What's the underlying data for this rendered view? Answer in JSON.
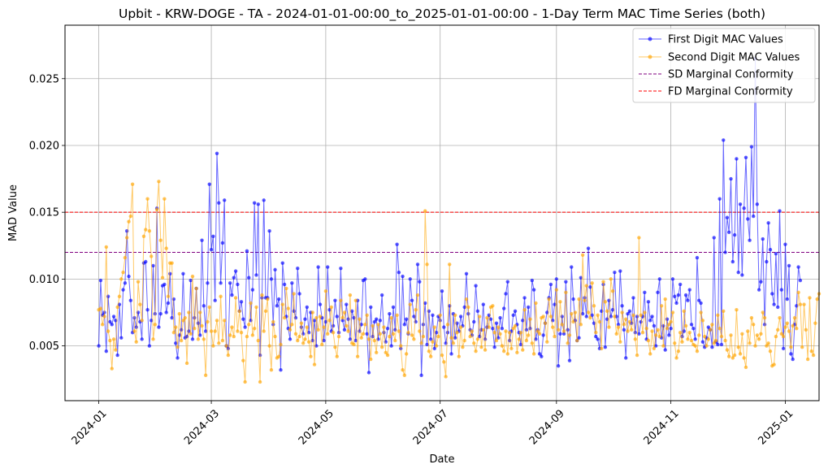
{
  "chart_data": {
    "type": "line",
    "title": "Upbit - KRW-DOGE - TA - 2024-01-01-00:00_to_2025-01-01-00:00 - 1-Day Term MAC Time Series (both)",
    "xlabel": "Date",
    "ylabel": "MAD Value",
    "x_ticks": [
      "2024-01",
      "2024-03",
      "2024-05",
      "2024-07",
      "2024-09",
      "2024-11",
      "2025-01"
    ],
    "y_ticks": [
      "0.005",
      "0.010",
      "0.015",
      "0.020",
      "0.025"
    ],
    "xlim": [
      "2023-12-14",
      "2025-01-19"
    ],
    "ylim": [
      0.0009,
      0.029
    ],
    "grid": true,
    "legend_position": "top-right",
    "start_date": "2024-01-01",
    "series": [
      {
        "name": "First Digit MAC Values",
        "color": "#0000ff",
        "values": [
          0.005,
          0.0099,
          0.0073,
          0.0075,
          0.0046,
          0.0087,
          0.0068,
          0.0066,
          0.0072,
          0.0069,
          0.0043,
          0.0081,
          0.0056,
          0.0092,
          0.0097,
          0.0136,
          0.0102,
          0.0084,
          0.006,
          0.0071,
          0.0064,
          0.0075,
          0.0068,
          0.0055,
          0.0112,
          0.0113,
          0.0077,
          0.005,
          0.0069,
          0.011,
          0.0074,
          0.0153,
          0.0064,
          0.0074,
          0.0095,
          0.0096,
          0.0075,
          0.0082,
          0.0104,
          0.0071,
          0.0085,
          0.0052,
          0.0041,
          0.0058,
          0.0062,
          0.0104,
          0.0056,
          0.0057,
          0.0061,
          0.0099,
          0.0055,
          0.0071,
          0.0093,
          0.0067,
          0.0058,
          0.0129,
          0.008,
          0.0061,
          0.0097,
          0.0171,
          0.0122,
          0.0132,
          0.0084,
          0.0194,
          0.0157,
          0.0097,
          0.0127,
          0.0159,
          0.005,
          0.0048,
          0.0097,
          0.0088,
          0.0101,
          0.0106,
          0.0096,
          0.0076,
          0.0083,
          0.007,
          0.0064,
          0.0121,
          0.0101,
          0.0069,
          0.0092,
          0.0157,
          0.0103,
          0.0156,
          0.0043,
          0.0086,
          0.0159,
          0.0086,
          0.0086,
          0.0136,
          0.01,
          0.0066,
          0.0107,
          0.008,
          0.0085,
          0.0032,
          0.0112,
          0.0096,
          0.0072,
          0.0063,
          0.0055,
          0.0097,
          0.0076,
          0.0071,
          0.0108,
          0.0089,
          0.0064,
          0.0059,
          0.007,
          0.0079,
          0.006,
          0.0075,
          0.0054,
          0.0069,
          0.005,
          0.0109,
          0.0081,
          0.0071,
          0.0054,
          0.0068,
          0.0109,
          0.0077,
          0.0061,
          0.0065,
          0.0084,
          0.0072,
          0.006,
          0.0108,
          0.0069,
          0.0062,
          0.0081,
          0.007,
          0.0055,
          0.0076,
          0.0071,
          0.0054,
          0.0084,
          0.0061,
          0.0066,
          0.0099,
          0.01,
          0.0059,
          0.003,
          0.0079,
          0.0057,
          0.0068,
          0.007,
          0.0055,
          0.0069,
          0.0088,
          0.006,
          0.0053,
          0.0063,
          0.0074,
          0.005,
          0.0079,
          0.0062,
          0.0126,
          0.0105,
          0.0048,
          0.0102,
          0.0066,
          0.007,
          0.0059,
          0.01,
          0.0084,
          0.0072,
          0.0068,
          0.0111,
          0.0098,
          0.0028,
          0.0066,
          0.0082,
          0.0051,
          0.0076,
          0.0055,
          0.0073,
          0.0048,
          0.006,
          0.0072,
          0.0069,
          0.0091,
          0.0064,
          0.0052,
          0.006,
          0.008,
          0.0044,
          0.0074,
          0.0056,
          0.0067,
          0.0061,
          0.0072,
          0.0065,
          0.0079,
          0.0104,
          0.0074,
          0.0062,
          0.0058,
          0.0068,
          0.0095,
          0.0076,
          0.0057,
          0.0062,
          0.0081,
          0.0055,
          0.0064,
          0.0073,
          0.007,
          0.0063,
          0.0049,
          0.0067,
          0.0056,
          0.0071,
          0.0063,
          0.0078,
          0.0089,
          0.0098,
          0.0054,
          0.0061,
          0.0073,
          0.0076,
          0.0066,
          0.006,
          0.0051,
          0.0069,
          0.0086,
          0.0062,
          0.0079,
          0.0063,
          0.0099,
          0.0092,
          0.0055,
          0.0062,
          0.0044,
          0.0042,
          0.0058,
          0.0067,
          0.0075,
          0.0086,
          0.0096,
          0.0069,
          0.0081,
          0.01,
          0.0035,
          0.0059,
          0.0072,
          0.0059,
          0.0098,
          0.0062,
          0.0039,
          0.0109,
          0.0085,
          0.0069,
          0.0054,
          0.0056,
          0.0101,
          0.0074,
          0.0086,
          0.0072,
          0.0123,
          0.0094,
          0.0073,
          0.0067,
          0.0057,
          0.0055,
          0.0048,
          0.0076,
          0.0096,
          0.0049,
          0.007,
          0.0084,
          0.0072,
          0.0077,
          0.0105,
          0.0072,
          0.0066,
          0.0106,
          0.008,
          0.0062,
          0.0041,
          0.0074,
          0.0076,
          0.0067,
          0.0086,
          0.006,
          0.0072,
          0.0059,
          0.0068,
          0.0072,
          0.009,
          0.0055,
          0.0083,
          0.0069,
          0.0072,
          0.0065,
          0.005,
          0.009,
          0.01,
          0.0056,
          0.0065,
          0.0047,
          0.007,
          0.0058,
          0.0063,
          0.01,
          0.0087,
          0.0082,
          0.0088,
          0.0096,
          0.0057,
          0.0061,
          0.0088,
          0.0084,
          0.0092,
          0.0066,
          0.0063,
          0.0055,
          0.0116,
          0.0084,
          0.0082,
          0.0053,
          0.0049,
          0.0056,
          0.0064,
          0.0062,
          0.0049,
          0.0131,
          0.0053,
          0.0051,
          0.016,
          0.0051,
          0.0204,
          0.012,
          0.0146,
          0.0135,
          0.0175,
          0.0113,
          0.0133,
          0.019,
          0.0105,
          0.0156,
          0.0103,
          0.0153,
          0.0191,
          0.0145,
          0.0129,
          0.0199,
          0.0147,
          0.0265,
          0.0156,
          0.0092,
          0.0098,
          0.013,
          0.0066,
          0.0113,
          0.0142,
          0.0122,
          0.0089,
          0.0081,
          0.0119,
          0.0079,
          0.0151,
          0.0092,
          0.0048,
          0.0126,
          0.0085,
          0.011,
          0.0044,
          0.004,
          0.0066,
          0.008,
          0.0109,
          0.0099
        ]
      },
      {
        "name": "Second Digit MAC Values",
        "color": "#ffa500",
        "values": [
          0.0077,
          0.0078,
          0.0066,
          0.0072,
          0.0124,
          0.0061,
          0.0054,
          0.0033,
          0.0055,
          0.0047,
          0.0079,
          0.0087,
          0.01,
          0.0105,
          0.0116,
          0.0131,
          0.0143,
          0.0147,
          0.0171,
          0.0061,
          0.0053,
          0.0098,
          0.0081,
          0.0069,
          0.0132,
          0.0137,
          0.016,
          0.0136,
          0.0117,
          0.0055,
          0.0066,
          0.0152,
          0.0173,
          0.0129,
          0.0101,
          0.016,
          0.0123,
          0.0087,
          0.0112,
          0.0112,
          0.006,
          0.0064,
          0.0049,
          0.0074,
          0.0054,
          0.0069,
          0.0071,
          0.0037,
          0.0075,
          0.0059,
          0.0102,
          0.0063,
          0.0093,
          0.0055,
          0.0075,
          0.0065,
          0.0055,
          0.0028,
          0.0068,
          0.0079,
          0.0061,
          0.005,
          0.0061,
          0.0069,
          0.0052,
          0.0087,
          0.0054,
          0.0069,
          0.005,
          0.0043,
          0.0058,
          0.0064,
          0.0057,
          0.0086,
          0.0061,
          0.0076,
          0.006,
          0.0039,
          0.0023,
          0.0057,
          0.0066,
          0.0082,
          0.0058,
          0.0063,
          0.0079,
          0.0054,
          0.0023,
          0.0088,
          0.0061,
          0.0076,
          0.0085,
          0.005,
          0.0032,
          0.0068,
          0.0057,
          0.0041,
          0.0042,
          0.0051,
          0.0081,
          0.0071,
          0.0093,
          0.0078,
          0.0062,
          0.0066,
          0.0089,
          0.0059,
          0.0054,
          0.0057,
          0.0067,
          0.0052,
          0.0055,
          0.0064,
          0.0053,
          0.0042,
          0.0075,
          0.0036,
          0.0071,
          0.0062,
          0.0072,
          0.0051,
          0.0064,
          0.0091,
          0.0059,
          0.0069,
          0.0079,
          0.006,
          0.0049,
          0.0042,
          0.0057,
          0.0084,
          0.0071,
          0.0075,
          0.0065,
          0.0061,
          0.0088,
          0.0052,
          0.0051,
          0.0084,
          0.0042,
          0.007,
          0.0056,
          0.0059,
          0.0066,
          0.0073,
          0.0055,
          0.004,
          0.0065,
          0.0054,
          0.0045,
          0.0066,
          0.0059,
          0.0049,
          0.0064,
          0.0045,
          0.0043,
          0.0057,
          0.0071,
          0.0059,
          0.0054,
          0.0073,
          0.0061,
          0.005,
          0.0032,
          0.0028,
          0.0044,
          0.006,
          0.0081,
          0.0058,
          0.0055,
          0.0077,
          0.0088,
          0.0061,
          0.0052,
          0.0057,
          0.0151,
          0.0111,
          0.0046,
          0.0042,
          0.0053,
          0.0064,
          0.005,
          0.0057,
          0.0073,
          0.0043,
          0.0038,
          0.0027,
          0.0066,
          0.0111,
          0.0056,
          0.0052,
          0.0073,
          0.006,
          0.0042,
          0.0064,
          0.0049,
          0.0054,
          0.0085,
          0.0079,
          0.0057,
          0.0061,
          0.0052,
          0.0046,
          0.0055,
          0.0072,
          0.0049,
          0.0062,
          0.0047,
          0.0071,
          0.0064,
          0.0079,
          0.008,
          0.006,
          0.0054,
          0.0064,
          0.0059,
          0.005,
          0.0046,
          0.0061,
          0.0044,
          0.006,
          0.0048,
          0.0063,
          0.0065,
          0.0045,
          0.0055,
          0.006,
          0.0047,
          0.0077,
          0.0054,
          0.0058,
          0.007,
          0.0052,
          0.0044,
          0.0082,
          0.0061,
          0.0059,
          0.0071,
          0.0072,
          0.0067,
          0.0053,
          0.0085,
          0.0072,
          0.0064,
          0.0057,
          0.0092,
          0.0062,
          0.0083,
          0.0066,
          0.0061,
          0.009,
          0.0052,
          0.0058,
          0.0074,
          0.0068,
          0.0075,
          0.0054,
          0.0085,
          0.0066,
          0.0118,
          0.0084,
          0.0095,
          0.0075,
          0.0071,
          0.0097,
          0.008,
          0.006,
          0.0073,
          0.0068,
          0.0048,
          0.0098,
          0.0083,
          0.0076,
          0.0064,
          0.01,
          0.0091,
          0.0072,
          0.0059,
          0.0064,
          0.0053,
          0.0075,
          0.0066,
          0.007,
          0.0061,
          0.0068,
          0.0062,
          0.0073,
          0.0055,
          0.0043,
          0.0131,
          0.0073,
          0.006,
          0.0075,
          0.0063,
          0.0054,
          0.0044,
          0.0061,
          0.0048,
          0.0058,
          0.0062,
          0.0057,
          0.008,
          0.005,
          0.0085,
          0.0063,
          0.0066,
          0.0068,
          0.0075,
          0.0052,
          0.0041,
          0.0046,
          0.006,
          0.0053,
          0.0076,
          0.0065,
          0.0055,
          0.006,
          0.0054,
          0.0051,
          0.005,
          0.0046,
          0.0058,
          0.0075,
          0.0069,
          0.0057,
          0.005,
          0.0055,
          0.0062,
          0.0066,
          0.0052,
          0.0054,
          0.0073,
          0.0063,
          0.0057,
          0.0076,
          0.0054,
          0.0047,
          0.0042,
          0.0058,
          0.0041,
          0.0043,
          0.0077,
          0.0049,
          0.0044,
          0.0059,
          0.0041,
          0.0034,
          0.0061,
          0.0052,
          0.0071,
          0.0066,
          0.005,
          0.0058,
          0.0055,
          0.0059,
          0.0075,
          0.0071,
          0.005,
          0.0052,
          0.0046,
          0.0035,
          0.0036,
          0.0057,
          0.0062,
          0.0071,
          0.0059,
          0.0057,
          0.0064,
          0.0067,
          0.0061,
          0.0049,
          0.0065,
          0.0071,
          0.0063,
          0.009,
          0.0081,
          0.0049,
          0.0081,
          0.0062,
          0.004,
          0.0086,
          0.0046,
          0.0043,
          0.0067,
          0.0085,
          0.0089
        ]
      }
    ],
    "reference_lines": [
      {
        "name": "SD Marginal Conformity",
        "value": 0.012,
        "color": "#800080",
        "style": "dashed"
      },
      {
        "name": "FD Marginal Conformity",
        "value": 0.015,
        "color": "#ff0000",
        "style": "dashed"
      }
    ]
  }
}
